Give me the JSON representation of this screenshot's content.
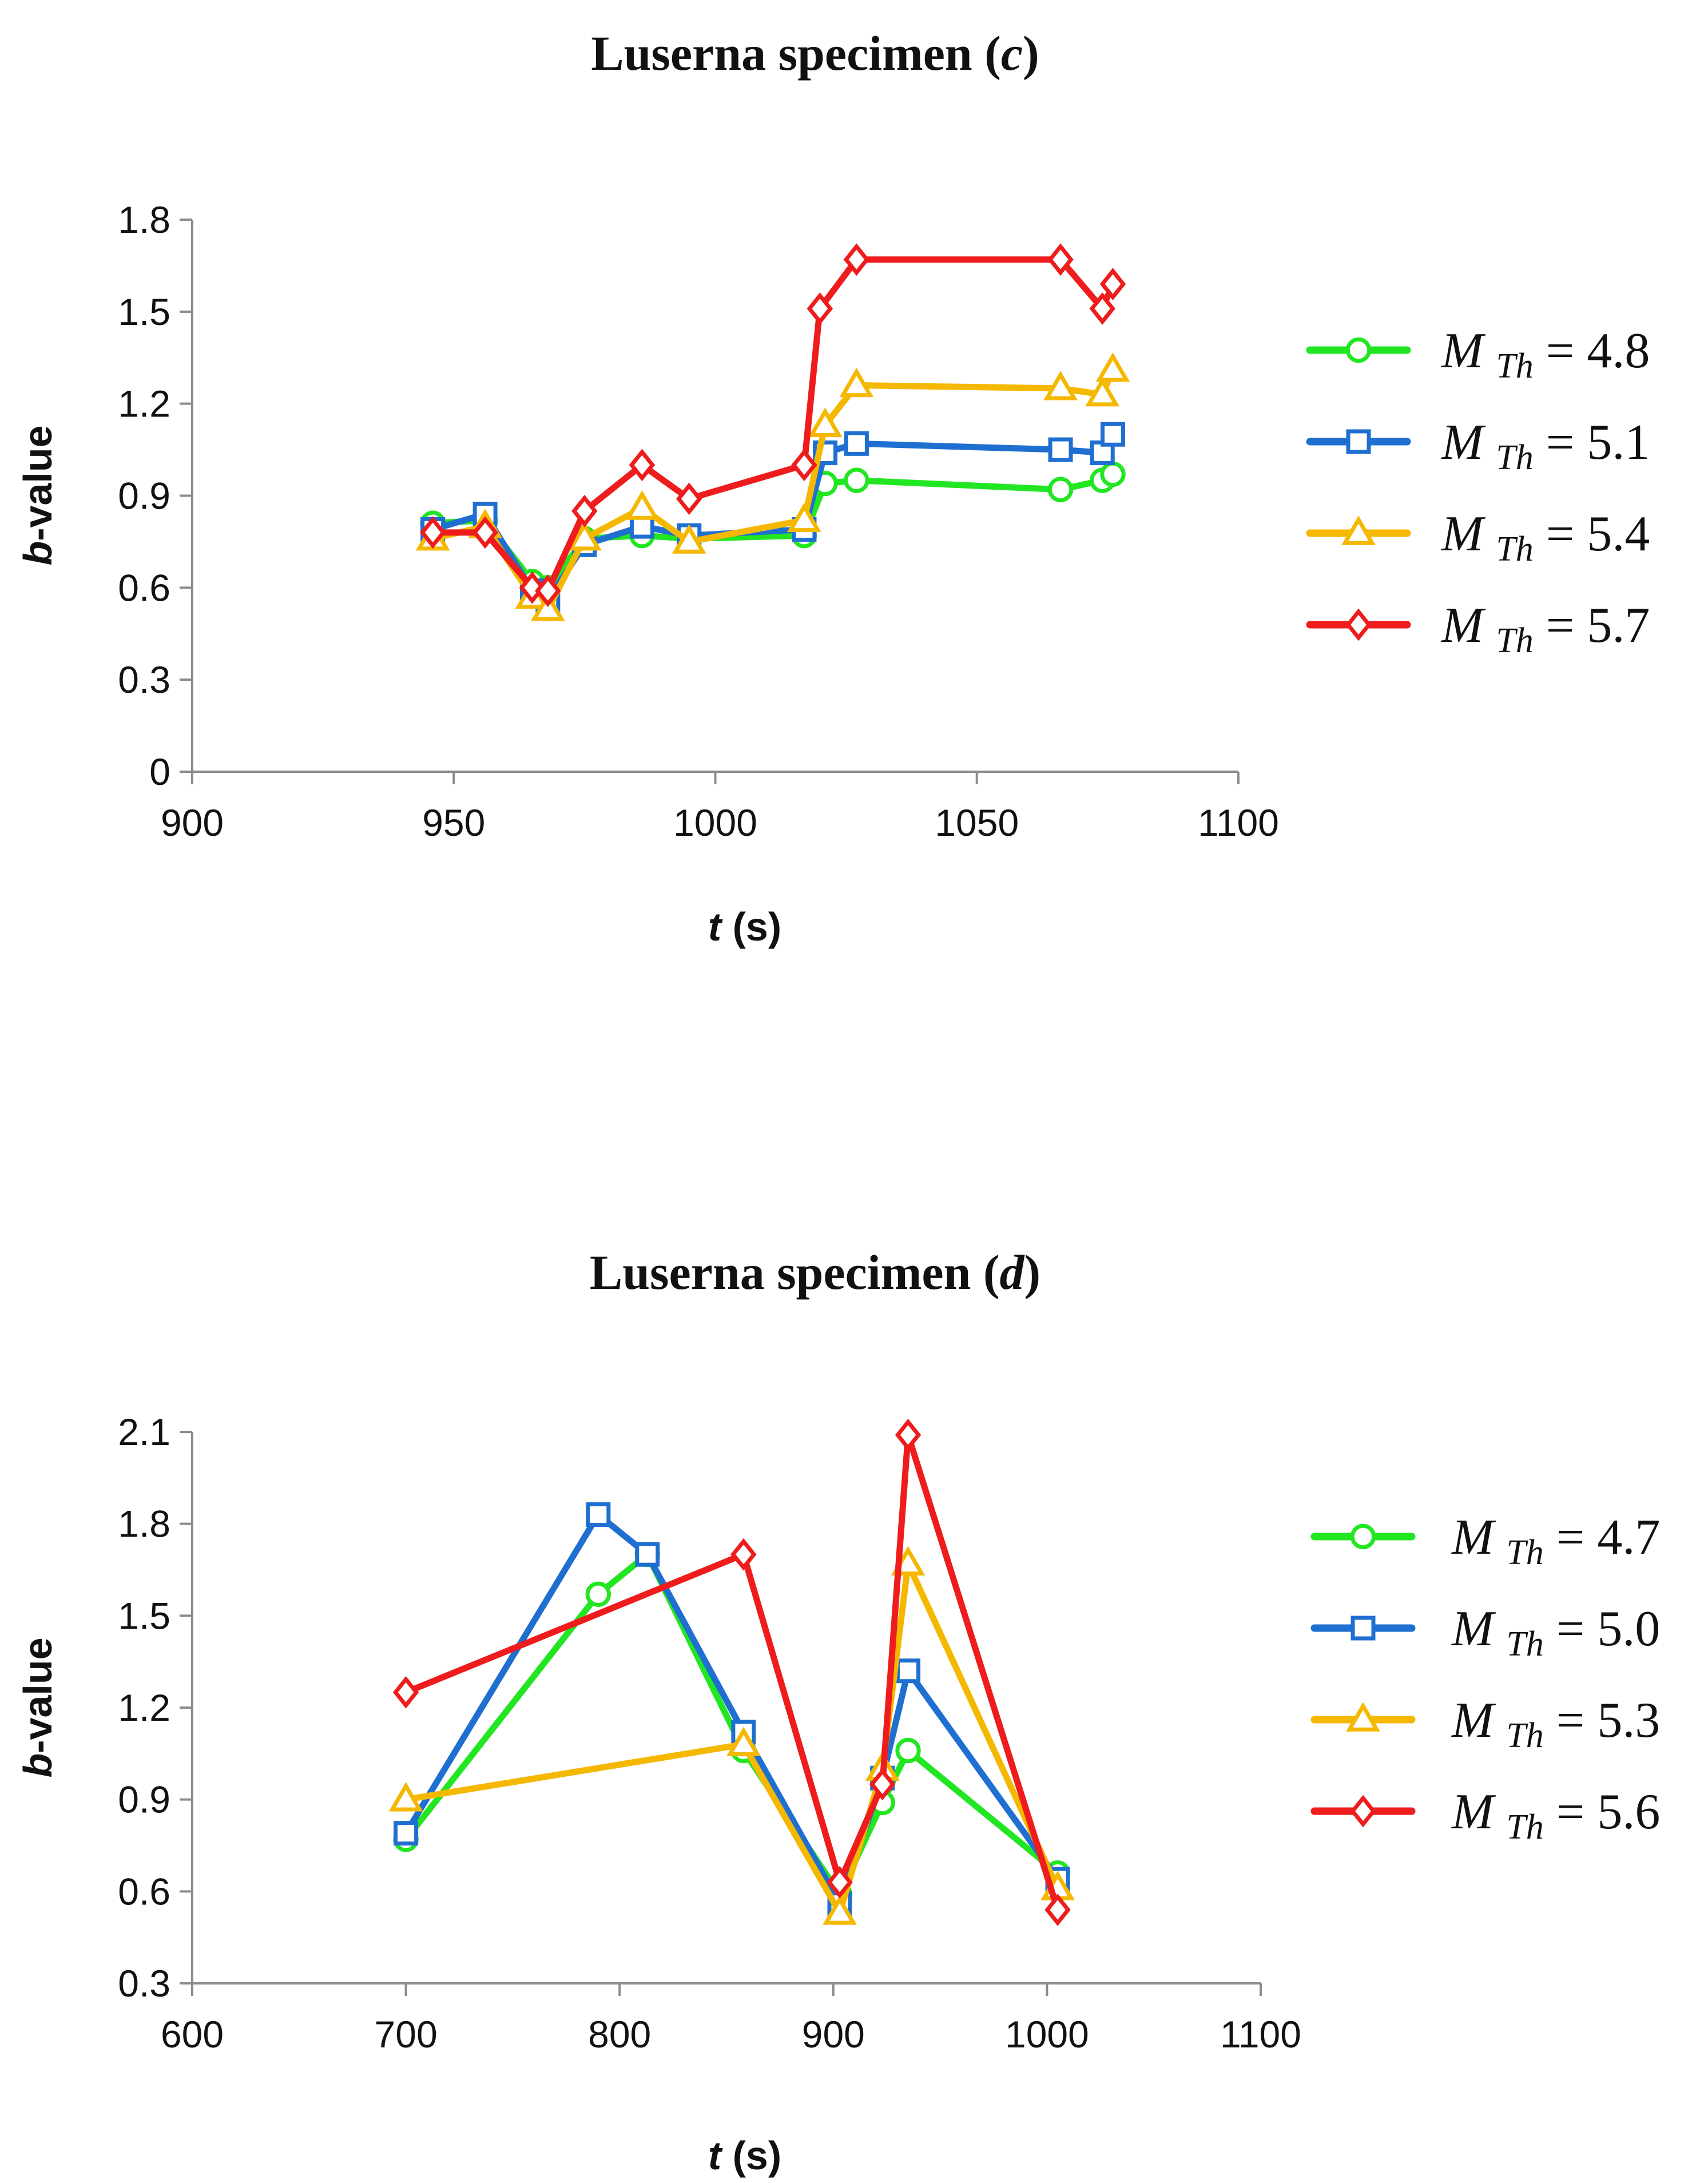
{
  "chart_data": [
    {
      "id": "c",
      "type": "line",
      "title_prefix": "Luserna specimen (",
      "title_letter": "c",
      "title_suffix": ")",
      "xlabel_var": "t",
      "xlabel_unit": " (s)",
      "ylabel_var": "b",
      "ylabel_rest": "-value",
      "xlim": [
        900,
        1100
      ],
      "ylim": [
        0,
        1.8
      ],
      "xticks": [
        900,
        950,
        1000,
        1050,
        1100
      ],
      "xtick_labels": [
        "900",
        "950",
        "1000",
        "1050",
        "1100"
      ],
      "yticks": [
        0,
        0.3,
        0.6,
        0.9,
        1.2,
        1.5,
        1.8
      ],
      "ytick_labels": [
        "0",
        "0.3",
        "0.6",
        "0.9",
        "1.2",
        "1.5",
        "1.8"
      ],
      "legend_position": "right",
      "series": [
        {
          "name": "M Th = 4.8",
          "legend_var": "M",
          "legend_sub": "Th",
          "legend_value": " = 4.8",
          "marker": "circle",
          "color": "#22e622",
          "points": [
            [
              946,
              0.81
            ],
            [
              956,
              0.82
            ],
            [
              965,
              0.62
            ],
            [
              968,
              0.6
            ],
            [
              975,
              0.76
            ],
            [
              986,
              0.77
            ],
            [
              995,
              0.76
            ],
            [
              1017,
              0.77
            ],
            [
              1021,
              0.94
            ],
            [
              1027,
              0.95
            ],
            [
              1066,
              0.92
            ],
            [
              1074,
              0.95
            ],
            [
              1076,
              0.97
            ]
          ]
        },
        {
          "name": "M Th = 5.1",
          "legend_var": "M",
          "legend_sub": "Th",
          "legend_value": " = 5.1",
          "marker": "square",
          "color": "#1f6fd1",
          "points": [
            [
              946,
              0.79
            ],
            [
              956,
              0.84
            ],
            [
              965,
              0.59
            ],
            [
              968,
              0.56
            ],
            [
              975,
              0.74
            ],
            [
              986,
              0.8
            ],
            [
              995,
              0.77
            ],
            [
              1017,
              0.79
            ],
            [
              1021,
              1.04
            ],
            [
              1027,
              1.07
            ],
            [
              1066,
              1.05
            ],
            [
              1074,
              1.04
            ],
            [
              1076,
              1.1
            ]
          ]
        },
        {
          "name": "M Th = 5.4",
          "legend_var": "M",
          "legend_sub": "Th",
          "legend_value": " = 5.4",
          "marker": "triangle",
          "color": "#f5b800",
          "points": [
            [
              946,
              0.76
            ],
            [
              956,
              0.8
            ],
            [
              965,
              0.57
            ],
            [
              968,
              0.53
            ],
            [
              975,
              0.76
            ],
            [
              986,
              0.86
            ],
            [
              995,
              0.75
            ],
            [
              1017,
              0.82
            ],
            [
              1021,
              1.13
            ],
            [
              1027,
              1.26
            ],
            [
              1066,
              1.25
            ],
            [
              1074,
              1.23
            ],
            [
              1076,
              1.31
            ]
          ]
        },
        {
          "name": "M Th = 5.7",
          "legend_var": "M",
          "legend_sub": "Th",
          "legend_value": " = 5.7",
          "marker": "diamond",
          "color": "#ee1c1c",
          "points": [
            [
              946,
              0.78
            ],
            [
              956,
              0.78
            ],
            [
              965,
              0.6
            ],
            [
              968,
              0.59
            ],
            [
              975,
              0.85
            ],
            [
              986,
              1.0
            ],
            [
              995,
              0.89
            ],
            [
              1017,
              1.0
            ],
            [
              1020,
              1.51
            ],
            [
              1027,
              1.67
            ],
            [
              1066,
              1.67
            ],
            [
              1074,
              1.51
            ],
            [
              1076,
              1.59
            ]
          ]
        }
      ]
    },
    {
      "id": "d",
      "type": "line",
      "title_prefix": "Luserna specimen (",
      "title_letter": "d",
      "title_suffix": ")",
      "xlabel_var": "t",
      "xlabel_unit": " (s)",
      "ylabel_var": "b",
      "ylabel_rest": "-value",
      "xlim": [
        600,
        1100
      ],
      "ylim": [
        0.3,
        2.1
      ],
      "xticks": [
        600,
        700,
        800,
        900,
        1000,
        1100
      ],
      "xtick_labels": [
        "600",
        "700",
        "800",
        "900",
        "1000",
        "1100"
      ],
      "yticks": [
        0.3,
        0.6,
        0.9,
        1.2,
        1.5,
        1.8,
        2.1
      ],
      "ytick_labels": [
        "0.3",
        "0.6",
        "0.9",
        "1.2",
        "1.5",
        "1.8",
        "2.1"
      ],
      "legend_position": "right",
      "series": [
        {
          "name": "M Th = 4.7",
          "legend_var": "M",
          "legend_sub": "Th",
          "legend_value": " = 4.7",
          "marker": "circle",
          "color": "#22e622",
          "points": [
            [
              700,
              0.77
            ],
            [
              790,
              1.57
            ],
            [
              813,
              1.7
            ],
            [
              858,
              1.06
            ],
            [
              903,
              0.59
            ],
            [
              923,
              0.89
            ],
            [
              935,
              1.06
            ],
            [
              1005,
              0.66
            ]
          ]
        },
        {
          "name": "M Th = 5.0",
          "legend_var": "M",
          "legend_sub": "Th",
          "legend_value": " = 5.0",
          "marker": "square",
          "color": "#1f6fd1",
          "points": [
            [
              700,
              0.79
            ],
            [
              790,
              1.83
            ],
            [
              813,
              1.7
            ],
            [
              858,
              1.12
            ],
            [
              903,
              0.56
            ],
            [
              923,
              0.97
            ],
            [
              935,
              1.32
            ],
            [
              1005,
              0.64
            ]
          ]
        },
        {
          "name": "M Th = 5.3",
          "legend_var": "M",
          "legend_sub": "Th",
          "legend_value": " = 5.3",
          "marker": "triangle",
          "color": "#f5b800",
          "points": [
            [
              700,
              0.9
            ],
            [
              858,
              1.08
            ],
            [
              903,
              0.53
            ],
            [
              923,
              1.0
            ],
            [
              935,
              1.67
            ],
            [
              1005,
              0.61
            ]
          ]
        },
        {
          "name": "M Th = 5.6",
          "legend_var": "M",
          "legend_sub": "Th",
          "legend_value": " = 5.6",
          "marker": "diamond",
          "color": "#ee1c1c",
          "points": [
            [
              700,
              1.25
            ],
            [
              858,
              1.7
            ],
            [
              903,
              0.63
            ],
            [
              923,
              0.95
            ],
            [
              935,
              2.09
            ],
            [
              1005,
              0.54
            ]
          ]
        }
      ]
    }
  ]
}
